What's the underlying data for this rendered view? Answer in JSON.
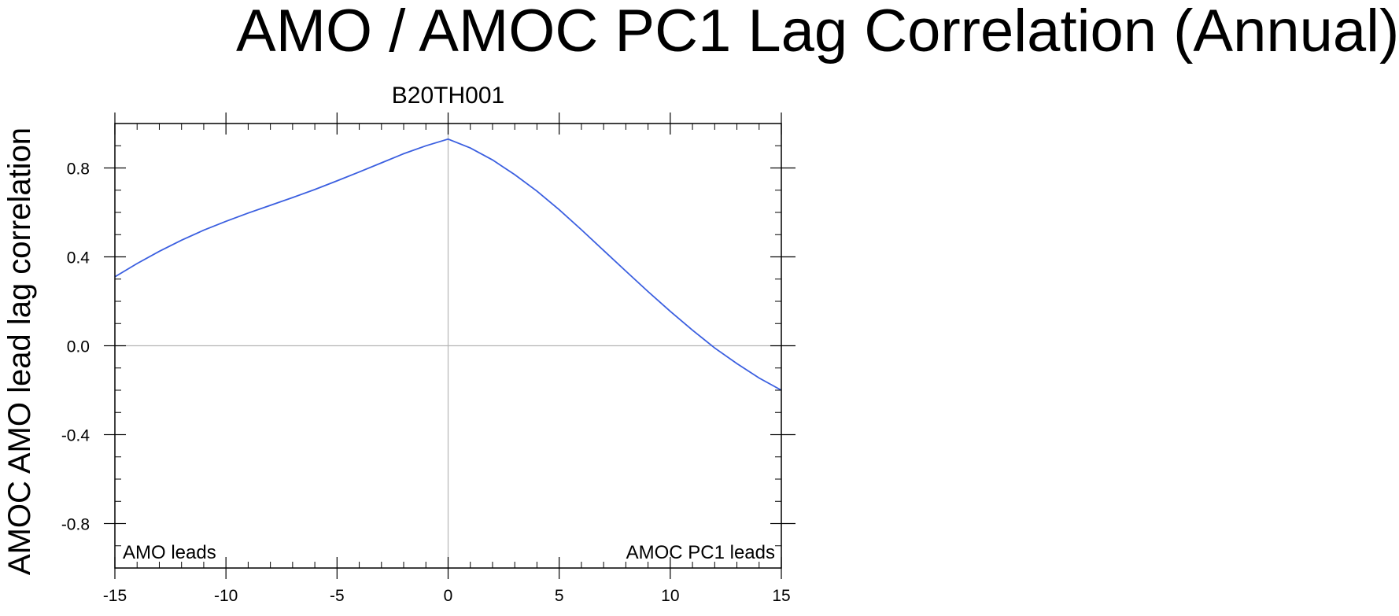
{
  "title": "AMO / AMOC PC1 Lag Correlation (Annual)",
  "chart_data": {
    "type": "line",
    "title": "B20TH001",
    "xlabel": "",
    "ylabel": "AMOC AMO lead lag correlation",
    "xlim": [
      -15,
      15
    ],
    "ylim": [
      -1.0,
      1.0
    ],
    "x_ticks": [
      -15,
      -10,
      -5,
      0,
      5,
      10,
      15
    ],
    "x_tick_labels": [
      "-15",
      "-10",
      "-5",
      "0",
      "5",
      "10",
      "15"
    ],
    "y_ticks": [
      -0.8,
      -0.4,
      0.0,
      0.4,
      0.8
    ],
    "y_tick_labels": [
      "-0.8",
      "-0.4",
      "0.0",
      "0.4",
      "0.8"
    ],
    "reference_lines": {
      "x": 0,
      "y": 0
    },
    "annotations": {
      "left": "AMO leads",
      "right": "AMOC PC1 leads"
    },
    "series": [
      {
        "name": "B20TH001",
        "color": "#3b5fe0",
        "x": [
          -15,
          -14,
          -13,
          -12,
          -11,
          -10,
          -9,
          -8,
          -7,
          -6,
          -5,
          -4,
          -3,
          -2,
          -1,
          0,
          1,
          2,
          3,
          4,
          5,
          6,
          7,
          8,
          9,
          10,
          11,
          12,
          13,
          14,
          15
        ],
        "values": [
          0.31,
          0.37,
          0.425,
          0.475,
          0.52,
          0.56,
          0.597,
          0.632,
          0.667,
          0.703,
          0.742,
          0.782,
          0.823,
          0.864,
          0.9,
          0.93,
          0.89,
          0.836,
          0.77,
          0.696,
          0.612,
          0.522,
          0.429,
          0.336,
          0.244,
          0.155,
          0.07,
          -0.01,
          -0.08,
          -0.145,
          -0.2
        ]
      }
    ]
  }
}
